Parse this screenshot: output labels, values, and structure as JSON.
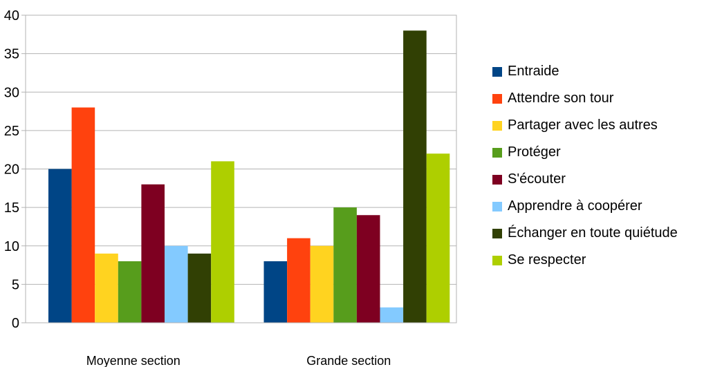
{
  "chart_data": {
    "type": "bar",
    "title": "",
    "xlabel": "",
    "ylabel": "",
    "ylim": [
      0,
      40
    ],
    "yticks": [
      0,
      5,
      10,
      15,
      20,
      25,
      30,
      35,
      40
    ],
    "grid": "horizontal",
    "legend_position": "right",
    "categories": [
      "Moyenne section",
      "Grande section"
    ],
    "series": [
      {
        "name": "Entraide",
        "color": "#004586",
        "values": [
          20,
          8
        ]
      },
      {
        "name": "Attendre son tour",
        "color": "#FF420E",
        "values": [
          28,
          11
        ]
      },
      {
        "name": "Partager avec les autres",
        "color": "#FFD320",
        "values": [
          9,
          10
        ]
      },
      {
        "name": "Protéger",
        "color": "#579D1C",
        "values": [
          8,
          15
        ]
      },
      {
        "name": "S'écouter",
        "color": "#7E0021",
        "values": [
          18,
          14
        ]
      },
      {
        "name": "Apprendre à coopérer",
        "color": "#83CAFF",
        "values": [
          10,
          2
        ]
      },
      {
        "name": "Échanger en toute quiétude",
        "color": "#314004",
        "values": [
          9,
          38
        ]
      },
      {
        "name": "Se respecter",
        "color": "#AECF00",
        "values": [
          21,
          22
        ]
      }
    ]
  }
}
